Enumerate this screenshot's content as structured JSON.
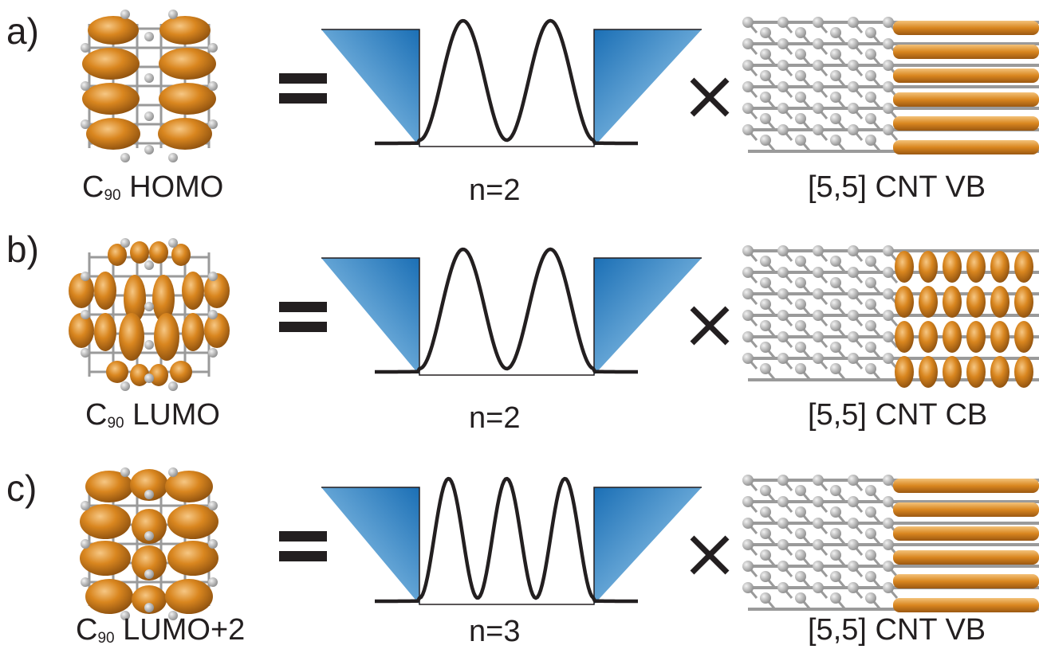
{
  "panels": [
    {
      "letter": "a)",
      "molecule": {
        "formula_main": "C",
        "formula_sub": "90",
        "orbital": "HOMO"
      },
      "operator_equals": "=",
      "well": {
        "n_label": "n=2",
        "n": 2
      },
      "operator_times": "×",
      "tube": {
        "label": "[5,5] CNT VB",
        "band": "VB"
      }
    },
    {
      "letter": "b)",
      "molecule": {
        "formula_main": "C",
        "formula_sub": "90",
        "orbital": "LUMO"
      },
      "operator_equals": "=",
      "well": {
        "n_label": "n=2",
        "n": 2
      },
      "operator_times": "×",
      "tube": {
        "label": "[5,5] CNT CB",
        "band": "CB"
      }
    },
    {
      "letter": "c)",
      "molecule": {
        "formula_main": "C",
        "formula_sub": "90",
        "orbital": "LUMO+2"
      },
      "operator_equals": "=",
      "well": {
        "n_label": "n=3",
        "n": 3
      },
      "operator_times": "×",
      "tube": {
        "label": "[5,5] CNT VB",
        "band": "VB"
      }
    }
  ],
  "colors": {
    "orbital": "#d9861f",
    "orbital_dark": "#8a4e0e",
    "orbital_light": "#f3c27a",
    "atom": "#b9b9b9",
    "bond": "#9a9a9a",
    "barrier_blue": "#1b6fb5",
    "text": "#231f20"
  }
}
